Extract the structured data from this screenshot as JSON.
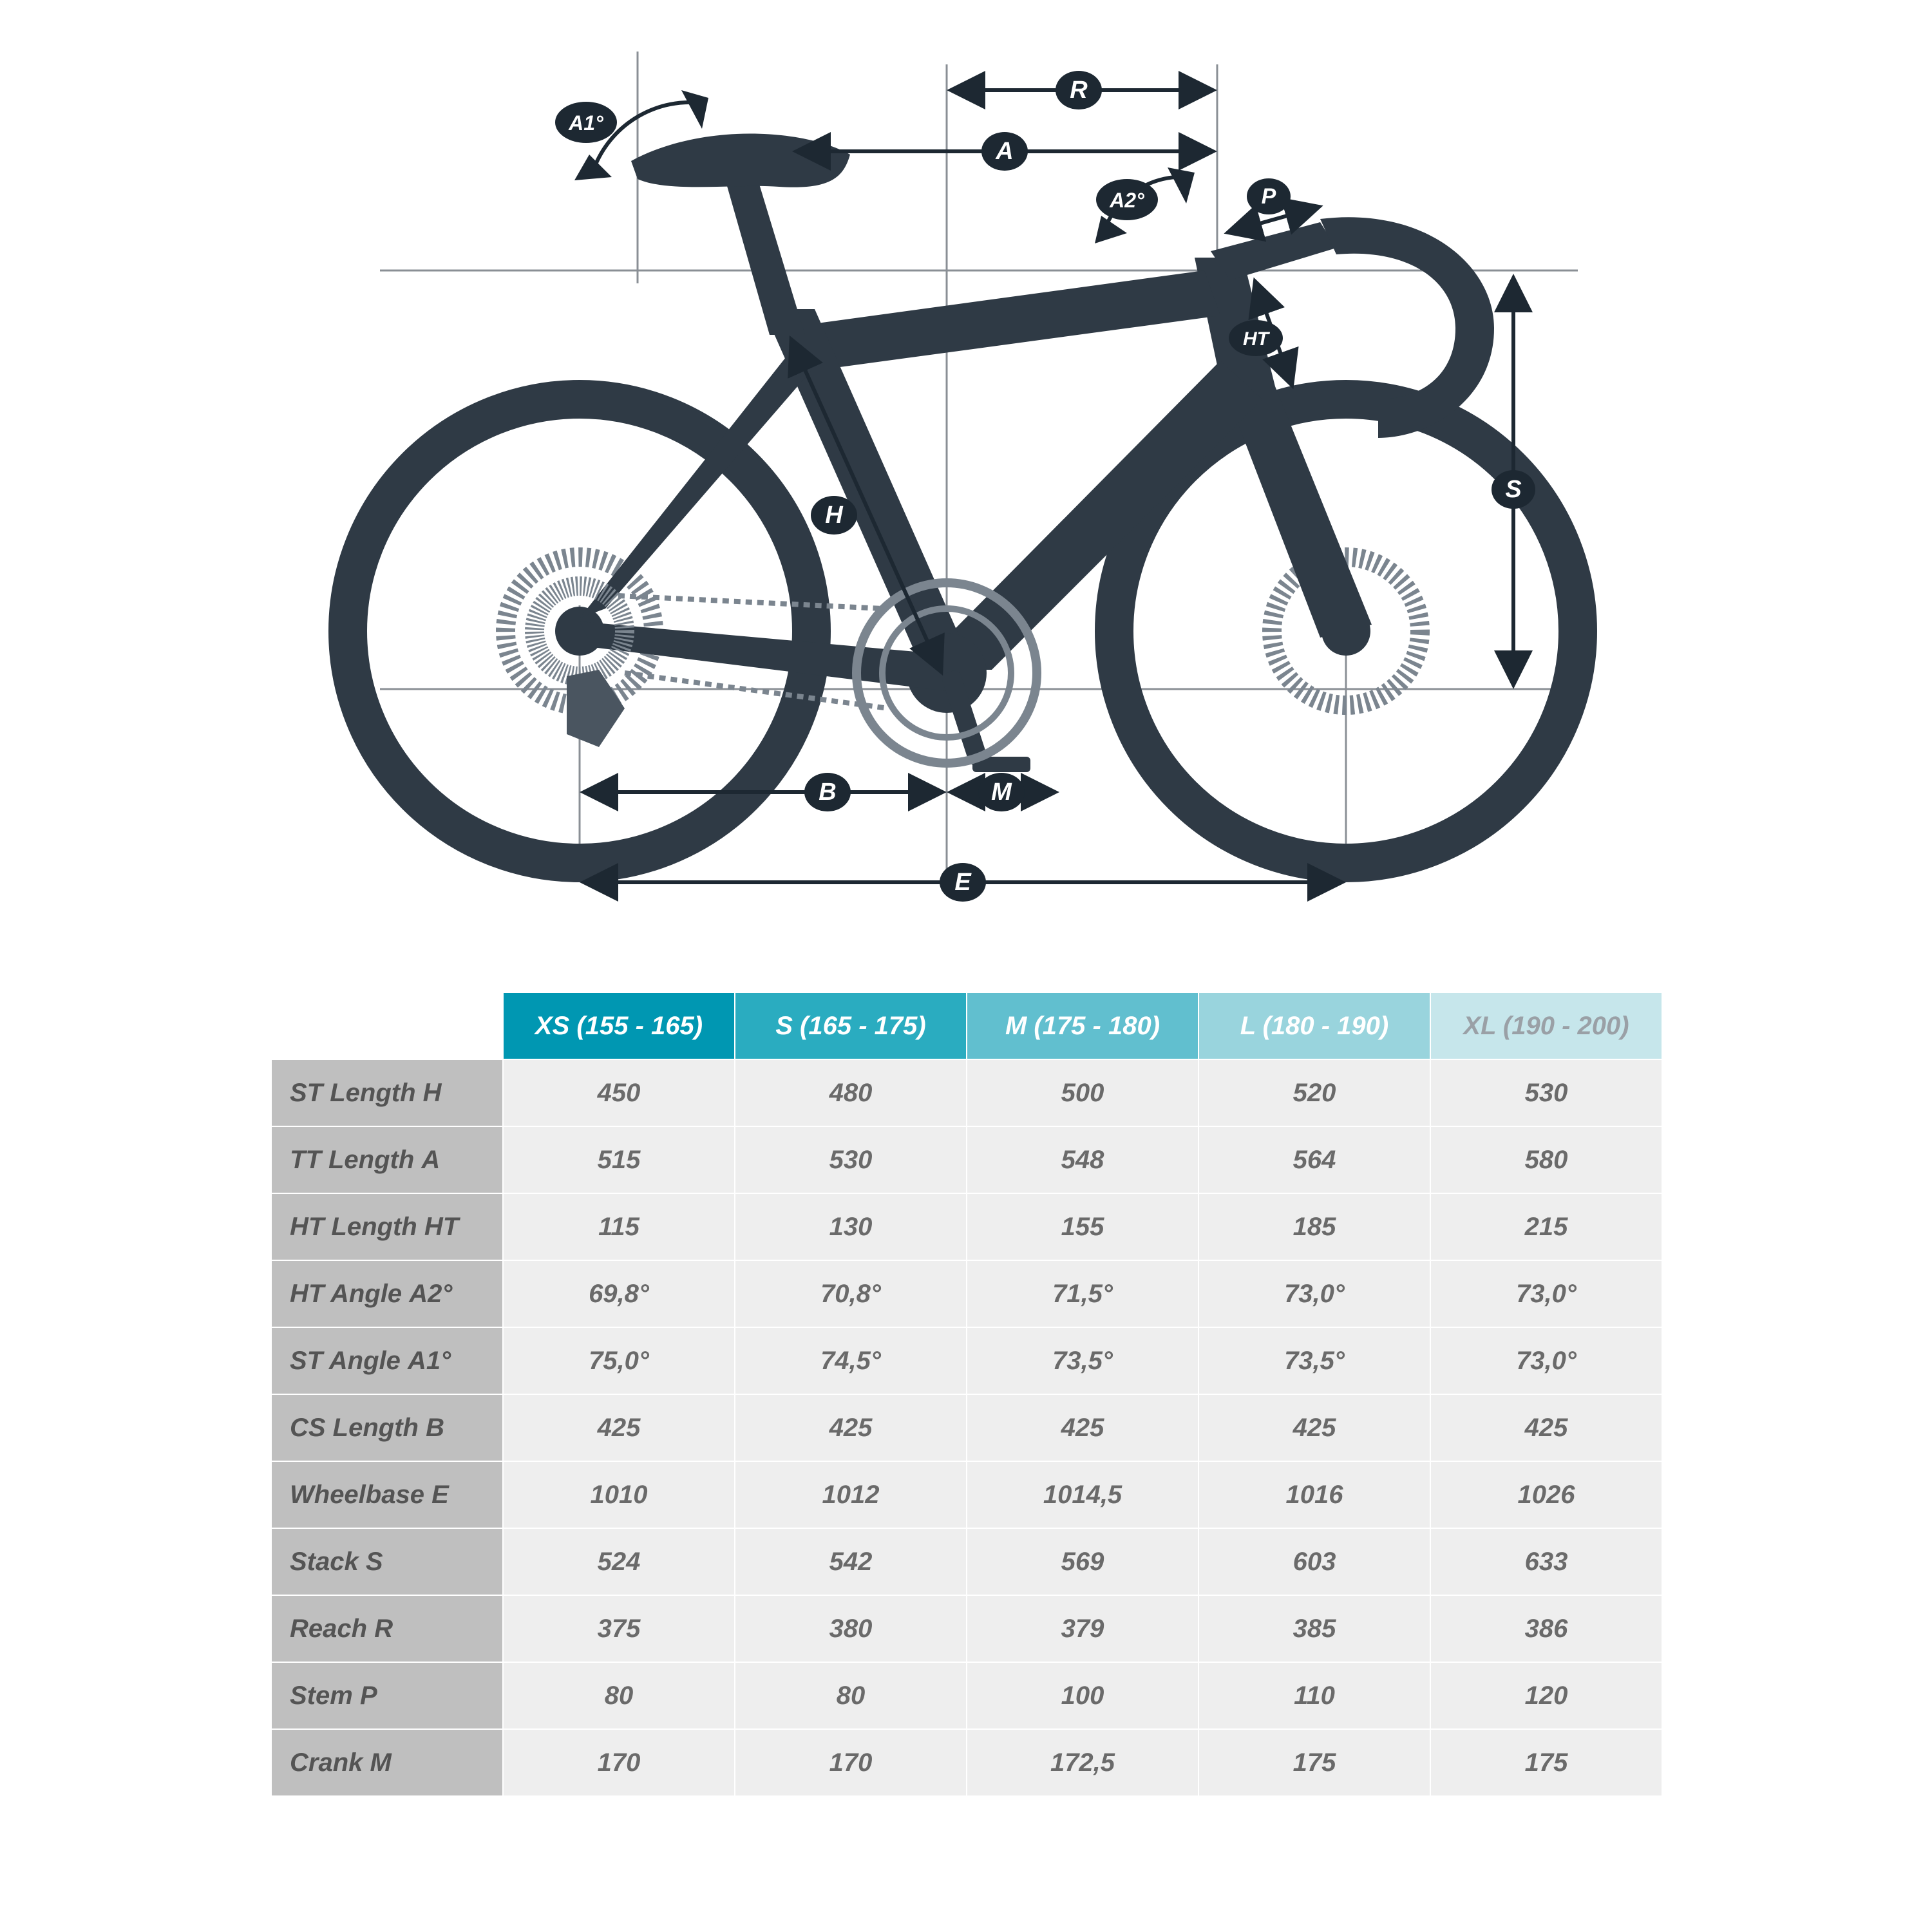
{
  "diagram": {
    "type": "engineering-diagram",
    "bike_color": "#2f3a45",
    "guide_color": "#8a8f95",
    "badge_fill": "#1d2832",
    "badge_text": "#ffffff",
    "labels": {
      "R": "R",
      "A": "A",
      "A1": "A1°",
      "A2": "A2°",
      "P": "P",
      "HT": "HT",
      "S": "S",
      "H": "H",
      "B": "B",
      "M": "M",
      "E": "E"
    }
  },
  "table": {
    "header_colors": [
      "#0097b2",
      "#2aacc0",
      "#61bfcf",
      "#99d4dd",
      "#c6e6eb"
    ],
    "header_text_colors": [
      "#ffffff",
      "#ffffff",
      "#ffffff",
      "#ffffff",
      "#9aa0a6"
    ],
    "row_header_bg": "#bfbfbf",
    "row_header_text": "#545454",
    "cell_bg": "#eeeeee",
    "cell_text": "#6a6a6a",
    "border_color": "#ffffff",
    "sizes": [
      "XS (155 - 165)",
      "S (165 - 175)",
      "M (175 - 180)",
      "L (180 - 190)",
      "XL (190 - 200)"
    ],
    "rows": [
      {
        "label": "ST Length",
        "code": "H",
        "values": [
          "450",
          "480",
          "500",
          "520",
          "530"
        ]
      },
      {
        "label": "TT Length",
        "code": "A",
        "values": [
          "515",
          "530",
          "548",
          "564",
          "580"
        ]
      },
      {
        "label": "HT Length",
        "code": "HT",
        "values": [
          "115",
          "130",
          "155",
          "185",
          "215"
        ]
      },
      {
        "label": "HT Angle",
        "code": "A2°",
        "values": [
          "69,8°",
          "70,8°",
          "71,5°",
          "73,0°",
          "73,0°"
        ]
      },
      {
        "label": "ST Angle",
        "code": "A1°",
        "values": [
          "75,0°",
          "74,5°",
          "73,5°",
          "73,5°",
          "73,0°"
        ]
      },
      {
        "label": "CS Length",
        "code": "B",
        "values": [
          "425",
          "425",
          "425",
          "425",
          "425"
        ]
      },
      {
        "label": "Wheelbase",
        "code": "E",
        "values": [
          "1010",
          "1012",
          "1014,5",
          "1016",
          "1026"
        ]
      },
      {
        "label": "Stack",
        "code": "S",
        "values": [
          "524",
          "542",
          "569",
          "603",
          "633"
        ]
      },
      {
        "label": "Reach",
        "code": "R",
        "values": [
          "375",
          "380",
          "379",
          "385",
          "386"
        ]
      },
      {
        "label": "Stem",
        "code": "P",
        "values": [
          "80",
          "80",
          "100",
          "110",
          "120"
        ]
      },
      {
        "label": "Crank",
        "code": "M",
        "values": [
          "170",
          "170",
          "172,5",
          "175",
          "175"
        ]
      }
    ]
  }
}
